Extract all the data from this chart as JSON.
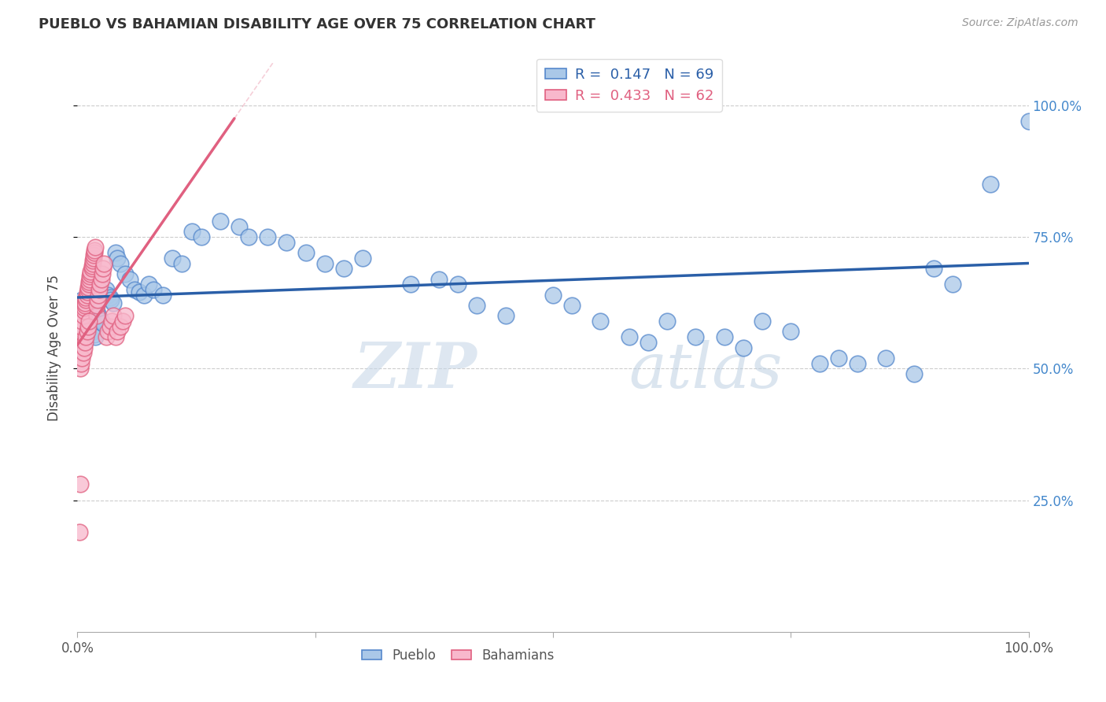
{
  "title": "PUEBLO VS BAHAMIAN DISABILITY AGE OVER 75 CORRELATION CHART",
  "source": "Source: ZipAtlas.com",
  "ylabel": "Disability Age Over 75",
  "xlim": [
    0,
    1.0
  ],
  "ylim": [
    0,
    1.08
  ],
  "pueblo_R": 0.147,
  "pueblo_N": 69,
  "bahamian_R": 0.433,
  "bahamian_N": 62,
  "pueblo_color": "#aac8e8",
  "pueblo_edge_color": "#5588cc",
  "bahamian_color": "#f8b8cc",
  "bahamian_edge_color": "#e06080",
  "pueblo_line_color": "#2a5fa8",
  "bahamian_line_color": "#e06080",
  "background_color": "#ffffff",
  "watermark_zip": "ZIP",
  "watermark_atlas": "atlas",
  "pueblo_x": [
    0.005,
    0.008,
    0.01,
    0.012,
    0.013,
    0.015,
    0.016,
    0.017,
    0.018,
    0.019,
    0.02,
    0.022,
    0.024,
    0.025,
    0.027,
    0.03,
    0.032,
    0.034,
    0.035,
    0.038,
    0.04,
    0.042,
    0.045,
    0.05,
    0.055,
    0.06,
    0.065,
    0.07,
    0.075,
    0.08,
    0.09,
    0.1,
    0.11,
    0.12,
    0.13,
    0.15,
    0.17,
    0.18,
    0.2,
    0.22,
    0.24,
    0.26,
    0.28,
    0.3,
    0.35,
    0.38,
    0.4,
    0.42,
    0.45,
    0.5,
    0.52,
    0.55,
    0.58,
    0.6,
    0.62,
    0.65,
    0.68,
    0.7,
    0.72,
    0.75,
    0.78,
    0.8,
    0.82,
    0.85,
    0.88,
    0.9,
    0.92,
    0.96,
    1.0
  ],
  "pueblo_y": [
    0.63,
    0.62,
    0.61,
    0.6,
    0.59,
    0.58,
    0.575,
    0.57,
    0.565,
    0.56,
    0.61,
    0.6,
    0.595,
    0.59,
    0.585,
    0.65,
    0.64,
    0.635,
    0.63,
    0.625,
    0.72,
    0.71,
    0.7,
    0.68,
    0.67,
    0.65,
    0.645,
    0.64,
    0.66,
    0.65,
    0.64,
    0.71,
    0.7,
    0.76,
    0.75,
    0.78,
    0.77,
    0.75,
    0.75,
    0.74,
    0.72,
    0.7,
    0.69,
    0.71,
    0.66,
    0.67,
    0.66,
    0.62,
    0.6,
    0.64,
    0.62,
    0.59,
    0.56,
    0.55,
    0.59,
    0.56,
    0.56,
    0.54,
    0.59,
    0.57,
    0.51,
    0.52,
    0.51,
    0.52,
    0.49,
    0.69,
    0.66,
    0.85,
    0.97
  ],
  "bahamian_x": [
    0.002,
    0.003,
    0.004,
    0.005,
    0.006,
    0.007,
    0.007,
    0.008,
    0.008,
    0.009,
    0.009,
    0.01,
    0.01,
    0.011,
    0.011,
    0.012,
    0.012,
    0.013,
    0.013,
    0.014,
    0.014,
    0.015,
    0.015,
    0.016,
    0.016,
    0.017,
    0.017,
    0.018,
    0.018,
    0.019,
    0.02,
    0.02,
    0.021,
    0.022,
    0.023,
    0.024,
    0.025,
    0.026,
    0.027,
    0.028,
    0.03,
    0.032,
    0.034,
    0.036,
    0.038,
    0.04,
    0.042,
    0.045,
    0.048,
    0.05,
    0.003,
    0.004,
    0.005,
    0.006,
    0.007,
    0.008,
    0.009,
    0.01,
    0.011,
    0.012,
    0.002,
    0.003
  ],
  "bahamian_y": [
    0.555,
    0.57,
    0.58,
    0.59,
    0.6,
    0.61,
    0.615,
    0.62,
    0.625,
    0.63,
    0.635,
    0.64,
    0.645,
    0.65,
    0.655,
    0.66,
    0.665,
    0.67,
    0.675,
    0.68,
    0.685,
    0.69,
    0.695,
    0.7,
    0.705,
    0.71,
    0.715,
    0.72,
    0.725,
    0.73,
    0.6,
    0.62,
    0.63,
    0.64,
    0.65,
    0.66,
    0.67,
    0.68,
    0.69,
    0.7,
    0.56,
    0.57,
    0.58,
    0.59,
    0.6,
    0.56,
    0.57,
    0.58,
    0.59,
    0.6,
    0.5,
    0.51,
    0.52,
    0.53,
    0.54,
    0.55,
    0.56,
    0.57,
    0.58,
    0.59,
    0.19,
    0.28
  ],
  "pueblo_line_x0": 0.0,
  "pueblo_line_x1": 1.0,
  "pueblo_line_y0": 0.635,
  "pueblo_line_y1": 0.7,
  "bahamian_line_x0": 0.0,
  "bahamian_line_x1": 0.165,
  "bahamian_line_y0": 0.545,
  "bahamian_line_y1": 0.975
}
